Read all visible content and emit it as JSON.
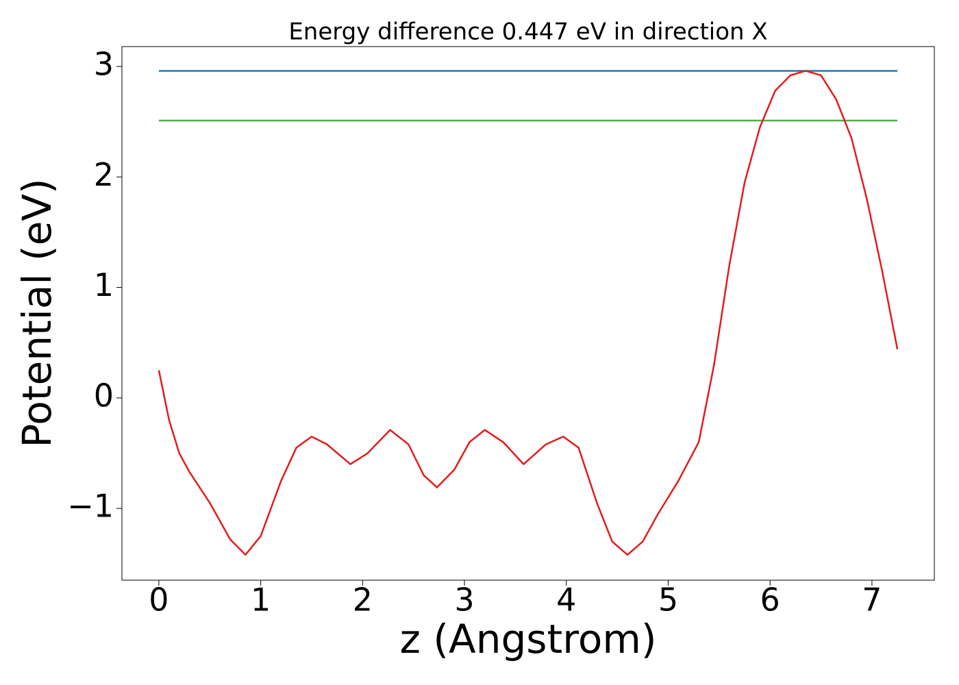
{
  "chart_data": {
    "type": "line",
    "title": "Energy difference 0.447 eV in direction X",
    "xlabel": "z (Angstrom)",
    "ylabel": "Potential (eV)",
    "xlim": [
      -0.3625,
      7.6125
    ],
    "ylim": [
      -1.65,
      3.18
    ],
    "xticks": [
      0,
      1,
      2,
      3,
      4,
      5,
      6,
      7
    ],
    "yticks": [
      {
        "value": -1,
        "label": "−1"
      },
      0,
      1,
      2,
      3
    ],
    "series": [
      {
        "color": "#1f77b4",
        "x": [
          0,
          7.25
        ],
        "values": [
          2.96,
          2.96
        ]
      },
      {
        "color": "#4daf4a",
        "x": [
          0,
          7.25
        ],
        "values": [
          2.51,
          2.51
        ]
      },
      {
        "color": "#e41a1c",
        "x": [
          0,
          0.1,
          0.2,
          0.3,
          0.5,
          0.7,
          0.85,
          1.0,
          1.2,
          1.35,
          1.5,
          1.65,
          1.88,
          2.05,
          2.27,
          2.45,
          2.6,
          2.73,
          2.9,
          3.05,
          3.2,
          3.38,
          3.58,
          3.8,
          3.97,
          4.12,
          4.3,
          4.45,
          4.6,
          4.75,
          4.9,
          5.1,
          5.3,
          5.45,
          5.6,
          5.75,
          5.9,
          6.05,
          6.2,
          6.35,
          6.5,
          6.65,
          6.8,
          6.95,
          7.1,
          7.25
        ],
        "values": [
          0.25,
          -0.2,
          -0.5,
          -0.67,
          -0.95,
          -1.28,
          -1.42,
          -1.25,
          -0.75,
          -0.45,
          -0.35,
          -0.42,
          -0.6,
          -0.5,
          -0.29,
          -0.42,
          -0.7,
          -0.81,
          -0.65,
          -0.4,
          -0.29,
          -0.4,
          -0.6,
          -0.42,
          -0.35,
          -0.45,
          -0.95,
          -1.3,
          -1.42,
          -1.3,
          -1.05,
          -0.75,
          -0.4,
          0.3,
          1.2,
          1.95,
          2.45,
          2.78,
          2.92,
          2.96,
          2.92,
          2.7,
          2.35,
          1.8,
          1.15,
          0.44
        ]
      }
    ]
  }
}
